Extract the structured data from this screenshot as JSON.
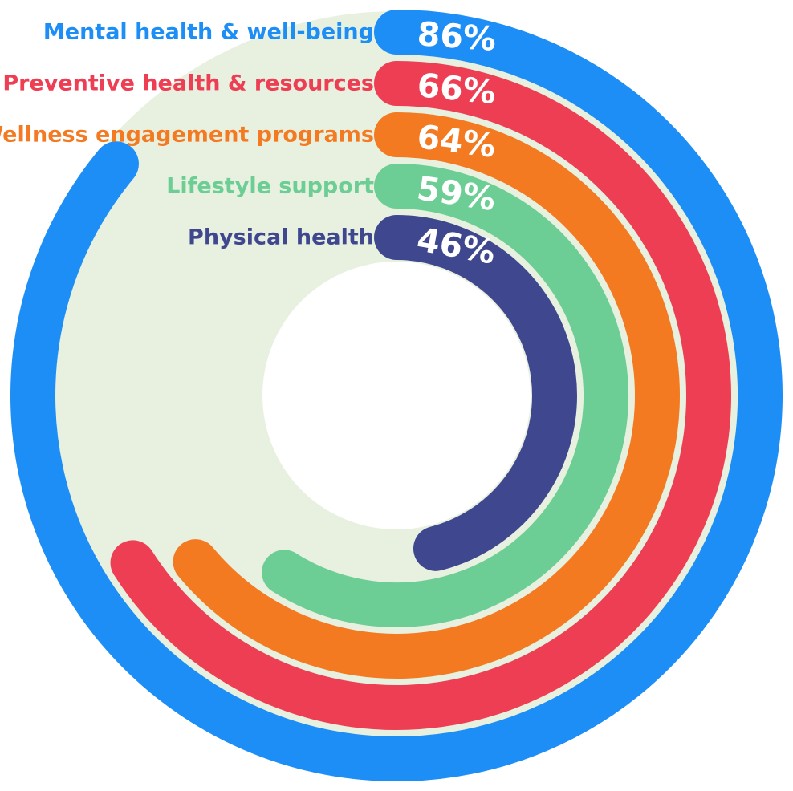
{
  "chart_data": {
    "type": "radial_bar",
    "max": 100,
    "background_color": "#E8F0DF",
    "series": [
      {
        "name": "Mental health & well-being",
        "value": 86,
        "value_label": "86%",
        "color": "#1D8EF6"
      },
      {
        "name": "Preventive health & resources",
        "value": 66,
        "value_label": "66%",
        "color": "#EE3E53"
      },
      {
        "name": "Wellness engagement programs",
        "value": 64,
        "value_label": "64%",
        "color": "#F47A22"
      },
      {
        "name": "Lifestyle support",
        "value": 59,
        "value_label": "59%",
        "color": "#6DCE95"
      },
      {
        "name": "Physical health",
        "value": 46,
        "value_label": "46%",
        "color": "#3F488F"
      }
    ]
  }
}
